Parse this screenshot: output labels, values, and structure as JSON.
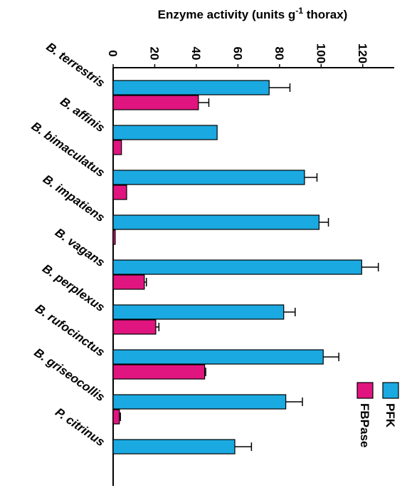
{
  "chart_data": {
    "type": "bar",
    "orientation": "horizontal",
    "title_parts": [
      "Enzyme activity (units g",
      "-1",
      " thorax)"
    ],
    "categories": [
      "B. terrestris",
      "B. affinis",
      "B. bimaculatus",
      "B. impatiens",
      "B. vagans",
      "B. perplexus",
      "B. rufocinctus",
      "B. griseocollis",
      "P. citrinus"
    ],
    "series": [
      {
        "name": "PFK",
        "color": "#1ba9e1",
        "values": [
          75,
          50,
          92,
          99,
          119.5,
          82,
          101,
          83,
          58.5
        ],
        "errors": [
          10,
          null,
          6,
          4.5,
          8,
          5.5,
          7.5,
          8,
          8
        ]
      },
      {
        "name": "FBPase",
        "color": "#e0157f",
        "values": [
          41,
          4,
          6.5,
          1,
          15,
          20.5,
          44,
          3,
          null
        ],
        "errors": [
          5,
          null,
          null,
          null,
          1,
          1.5,
          0.5,
          0.5,
          null
        ]
      }
    ],
    "xlim": [
      0,
      130
    ],
    "xticks": [
      0,
      20,
      40,
      60,
      80,
      100,
      120
    ],
    "legend": "lower right"
  }
}
